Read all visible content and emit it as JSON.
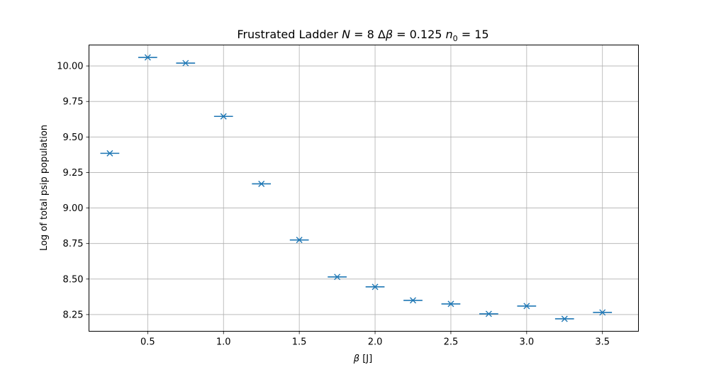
{
  "chart_data": {
    "type": "scatter",
    "title": {
      "prefix": "Frustrated Ladder ",
      "n_symbol": "N",
      "n_eq": " = 8 ",
      "delta_symbol": "Δ",
      "beta_symbol": "β",
      "beta_eq": " = 0.125 ",
      "n0_symbol": "n",
      "n0_sub": "0",
      "n0_eq": " = 15"
    },
    "xlabel": {
      "symbol": "β",
      "unit": " [J]"
    },
    "ylabel": "Log of total psip population",
    "xlim": [
      0.1125,
      3.7375
    ],
    "ylim": [
      8.1325,
      10.1475
    ],
    "xticks": [
      "0.5",
      "1.0",
      "1.5",
      "2.0",
      "2.5",
      "3.0",
      "3.5"
    ],
    "yticks": [
      "8.25",
      "8.50",
      "8.75",
      "9.00",
      "9.25",
      "9.50",
      "9.75",
      "10.00"
    ],
    "grid": true,
    "marker": "x",
    "xerr": 0.0625,
    "color": "#1f77b4",
    "x": [
      0.25,
      0.5,
      0.75,
      1.0,
      1.25,
      1.5,
      1.75,
      2.0,
      2.25,
      2.5,
      2.75,
      3.0,
      3.25,
      3.5
    ],
    "y": [
      9.385,
      10.06,
      10.02,
      9.645,
      9.17,
      8.775,
      8.515,
      8.445,
      8.35,
      8.325,
      8.255,
      8.31,
      8.22,
      8.265
    ]
  }
}
